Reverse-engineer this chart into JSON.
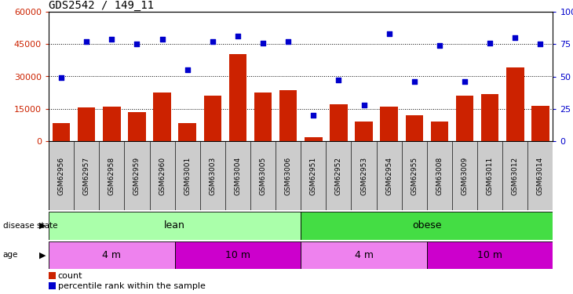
{
  "title": "GDS2542 / 149_11",
  "samples": [
    "GSM62956",
    "GSM62957",
    "GSM62958",
    "GSM62959",
    "GSM62960",
    "GSM63001",
    "GSM63003",
    "GSM63004",
    "GSM63005",
    "GSM63006",
    "GSM62951",
    "GSM62952",
    "GSM62953",
    "GSM62954",
    "GSM62955",
    "GSM63008",
    "GSM63009",
    "GSM63011",
    "GSM63012",
    "GSM63014"
  ],
  "counts": [
    8500,
    15500,
    16000,
    13500,
    22500,
    8500,
    21000,
    40500,
    22500,
    23500,
    2000,
    17000,
    9000,
    16000,
    12000,
    9000,
    21000,
    22000,
    34000,
    16500
  ],
  "percentile": [
    49,
    77,
    79,
    75,
    79,
    55,
    77,
    81,
    76,
    77,
    20,
    47,
    28,
    83,
    46,
    74,
    46,
    76,
    80,
    75
  ],
  "ylim_left": [
    0,
    60000
  ],
  "ylim_right": [
    0,
    100
  ],
  "yticks_left": [
    0,
    15000,
    30000,
    45000,
    60000
  ],
  "yticks_right": [
    0,
    25,
    50,
    75,
    100
  ],
  "bar_color": "#CC2200",
  "dot_color": "#0000CC",
  "lean_color": "#AAFFAA",
  "obese_color": "#44DD44",
  "annotation_bg": "#CCCCCC",
  "age_light": "#EE82EE",
  "age_dark": "#CC00CC",
  "age_groups": [
    {
      "label": "4 m",
      "start": 0,
      "end": 4,
      "color": "#EE82EE"
    },
    {
      "label": "10 m",
      "start": 5,
      "end": 9,
      "color": "#CC00CC"
    },
    {
      "label": "4 m",
      "start": 10,
      "end": 14,
      "color": "#EE82EE"
    },
    {
      "label": "10 m",
      "start": 15,
      "end": 19,
      "color": "#CC00CC"
    }
  ]
}
